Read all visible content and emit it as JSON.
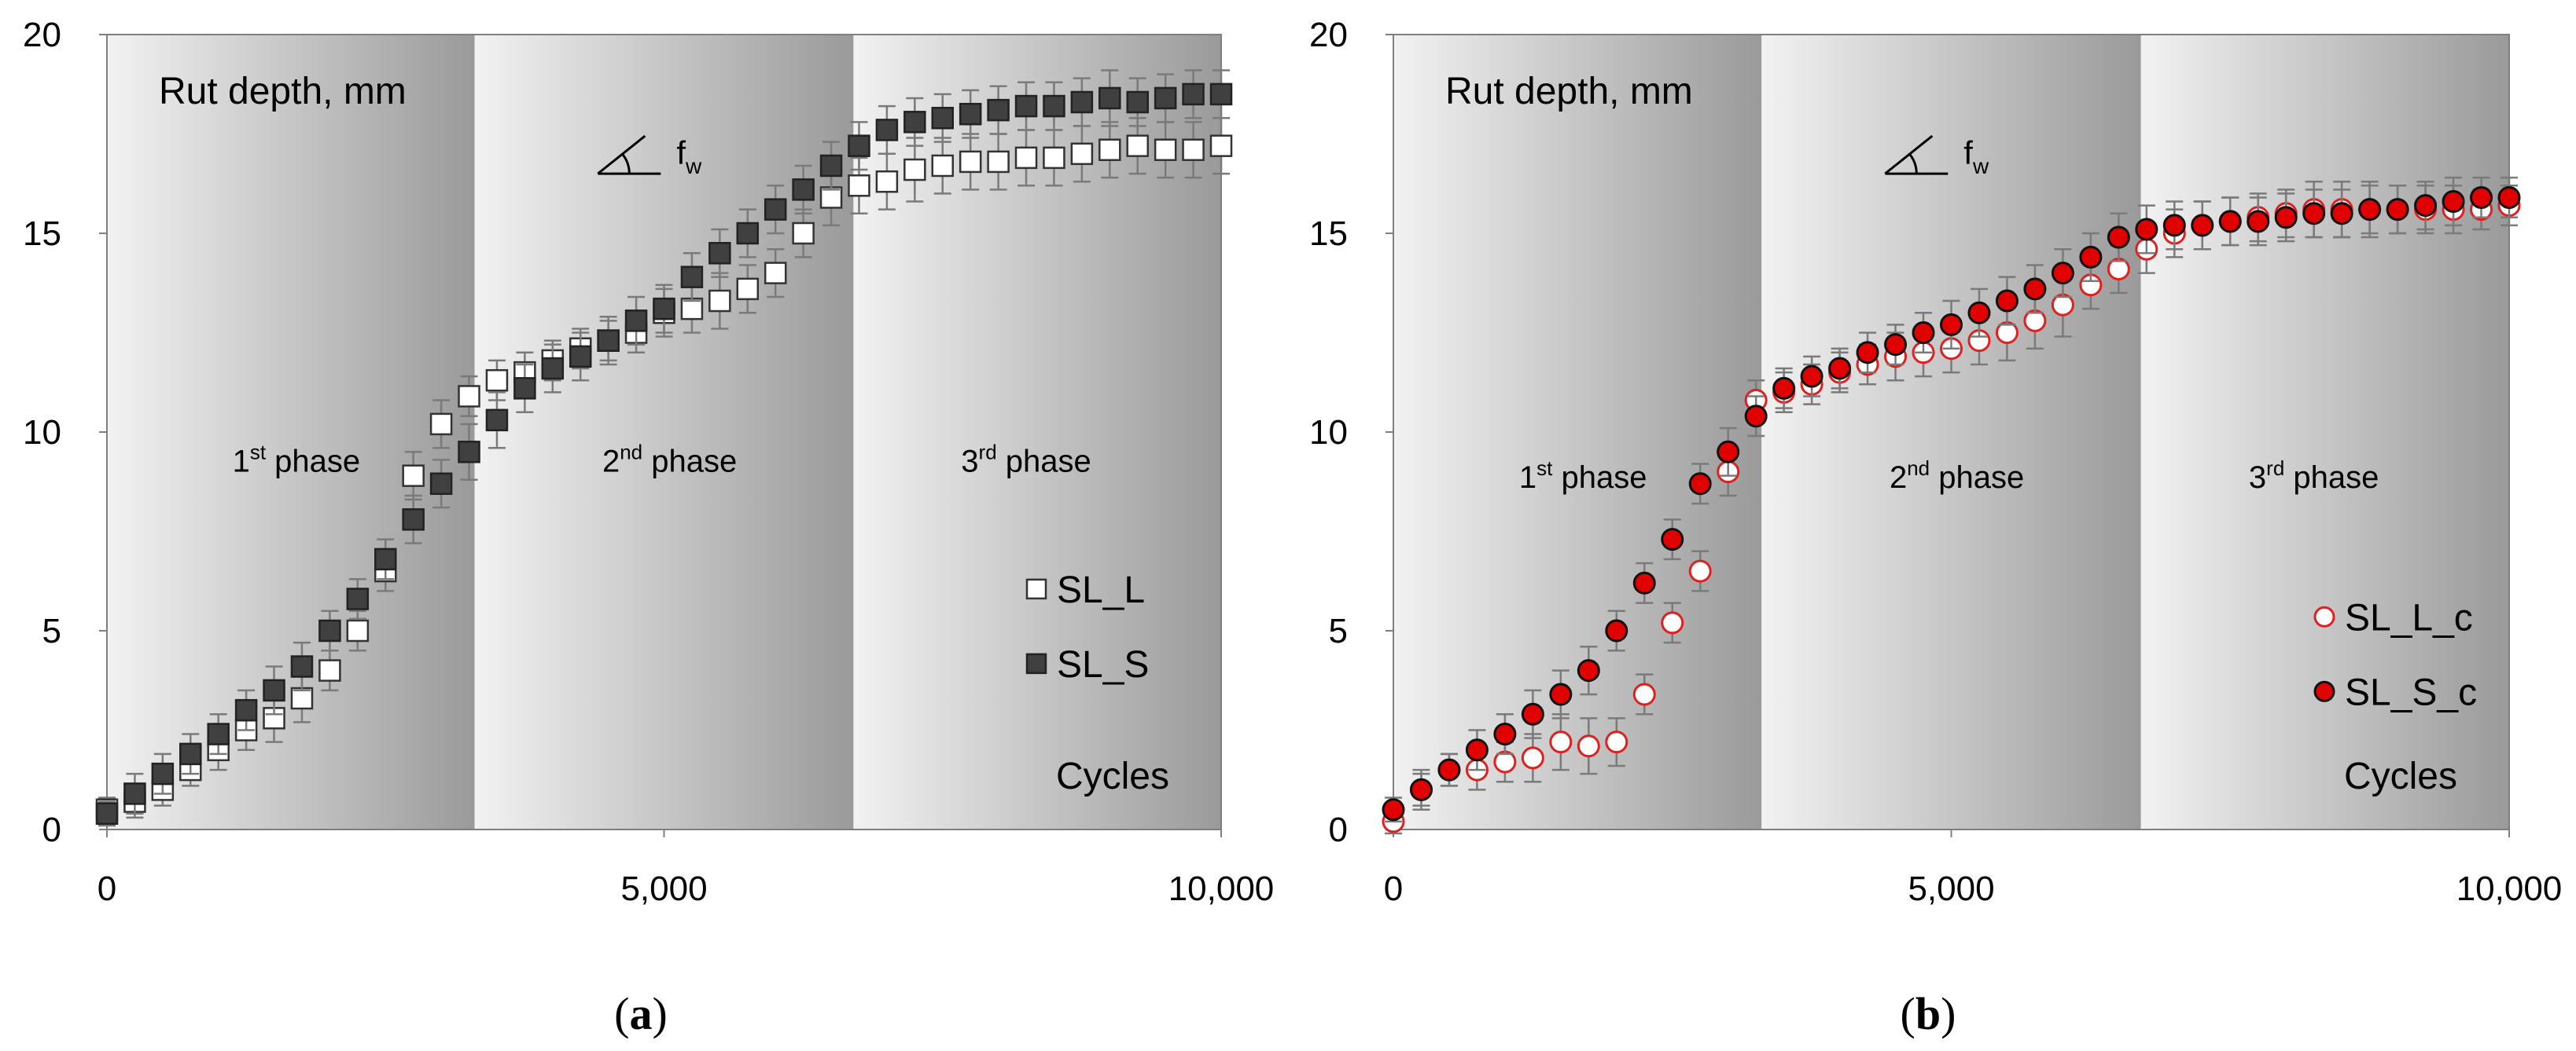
{
  "chart_data": [
    {
      "panel": "(a)",
      "panel_letter": "a",
      "type": "scatter",
      "ylabel": "Rut depth, mm",
      "xlabel": "Cycles",
      "xlim": [
        0,
        10000
      ],
      "ylim": [
        0,
        20
      ],
      "x_ticks": [
        "0",
        "5,000",
        "10,000"
      ],
      "y_ticks": [
        "0",
        "5",
        "10",
        "15",
        "20"
      ],
      "grid": false,
      "legend_position": "right",
      "background": "gradient",
      "phase_boundaries": [
        3300,
        6700
      ],
      "phases": [
        {
          "sup": "st",
          "num": "1",
          "text": " phase",
          "x": 1700,
          "y": 9.0
        },
        {
          "sup": "nd",
          "num": "2",
          "text": " phase",
          "x": 5050,
          "y": 9.0
        },
        {
          "sup": "rd",
          "num": "3",
          "text": " phase",
          "x": 8250,
          "y": 9.0
        }
      ],
      "fw_label": "w",
      "fw_prefix": "f",
      "fw_position": [
        4900,
        16.5
      ],
      "x": [
        0,
        250,
        500,
        750,
        1000,
        1250,
        1500,
        1750,
        2000,
        2250,
        2500,
        2750,
        3000,
        3250,
        3500,
        3750,
        4000,
        4250,
        4500,
        4750,
        5000,
        5250,
        5500,
        5750,
        6000,
        6250,
        6500,
        6750,
        7000,
        7250,
        7500,
        7750,
        8000,
        8250,
        8500,
        8750,
        9000,
        9250,
        9500,
        9750,
        10000
      ],
      "series": [
        {
          "name": "SL_L",
          "marker": "square",
          "fill": "#ffffff",
          "stroke": "#333333",
          "values": [
            0.5,
            0.7,
            1.0,
            1.5,
            2.0,
            2.5,
            2.8,
            3.3,
            4.0,
            5.0,
            6.5,
            8.9,
            10.2,
            10.9,
            11.3,
            11.5,
            11.8,
            12.1,
            12.3,
            12.5,
            13.0,
            13.1,
            13.3,
            13.6,
            14.0,
            15.0,
            15.9,
            16.2,
            16.3,
            16.6,
            16.7,
            16.8,
            16.8,
            16.9,
            16.9,
            17.0,
            17.1,
            17.2,
            17.1,
            17.1,
            17.2
          ],
          "errors": [
            0.3,
            0.4,
            0.4,
            0.4,
            0.5,
            0.5,
            0.6,
            0.6,
            0.5,
            0.5,
            0.5,
            0.6,
            0.6,
            0.5,
            0.5,
            0.5,
            0.5,
            0.5,
            0.5,
            0.5,
            0.6,
            0.6,
            0.7,
            0.6,
            0.6,
            0.6,
            0.7,
            0.7,
            0.7,
            0.8,
            0.7,
            0.7,
            0.7,
            0.7,
            0.7,
            0.7,
            0.7,
            0.7,
            0.7,
            0.7,
            0.7
          ]
        },
        {
          "name": "SL_S",
          "marker": "square",
          "fill": "#404040",
          "stroke": "#222222",
          "values": [
            0.4,
            0.9,
            1.4,
            1.9,
            2.4,
            3.0,
            3.5,
            4.1,
            5.0,
            5.8,
            6.8,
            7.8,
            8.7,
            9.5,
            10.3,
            11.1,
            11.6,
            11.9,
            12.3,
            12.8,
            13.1,
            13.9,
            14.5,
            15.0,
            15.6,
            16.1,
            16.7,
            17.2,
            17.6,
            17.8,
            17.9,
            18.0,
            18.1,
            18.2,
            18.2,
            18.3,
            18.4,
            18.3,
            18.4,
            18.5,
            18.5
          ],
          "errors": [
            0.3,
            0.5,
            0.5,
            0.5,
            0.5,
            0.5,
            0.6,
            0.6,
            0.5,
            0.5,
            0.5,
            0.6,
            0.6,
            0.7,
            0.7,
            0.6,
            0.6,
            0.6,
            0.6,
            0.6,
            0.6,
            0.6,
            0.6,
            0.6,
            0.6,
            0.6,
            0.6,
            0.6,
            0.6,
            0.6,
            0.6,
            0.6,
            0.6,
            0.6,
            0.6,
            0.6,
            0.7,
            0.6,
            0.6,
            0.6,
            0.6
          ]
        }
      ]
    },
    {
      "panel": "(b)",
      "panel_letter": "b",
      "type": "scatter",
      "ylabel": "Rut depth, mm",
      "xlabel": "Cycles",
      "xlim": [
        0,
        10000
      ],
      "ylim": [
        0,
        20
      ],
      "x_ticks": [
        "0",
        "5,000",
        "10,000"
      ],
      "y_ticks": [
        "0",
        "5",
        "10",
        "15",
        "20"
      ],
      "grid": false,
      "legend_position": "right",
      "background": "gradient",
      "phase_boundaries": [
        3300,
        6700
      ],
      "phases": [
        {
          "sup": "st",
          "num": "1",
          "text": " phase",
          "x": 1700,
          "y": 8.6
        },
        {
          "sup": "nd",
          "num": "2",
          "text": " phase",
          "x": 5050,
          "y": 8.6
        },
        {
          "sup": "rd",
          "num": "3",
          "text": " phase",
          "x": 8250,
          "y": 8.6
        }
      ],
      "fw_label": "w",
      "fw_prefix": "f",
      "fw_position": [
        4900,
        16.5
      ],
      "x": [
        0,
        250,
        500,
        750,
        1000,
        1250,
        1500,
        1750,
        2000,
        2250,
        2500,
        2750,
        3000,
        3250,
        3500,
        3750,
        4000,
        4250,
        4500,
        4750,
        5000,
        5250,
        5500,
        5750,
        6000,
        6250,
        6500,
        6750,
        7000,
        7250,
        7500,
        7750,
        8000,
        8250,
        8500,
        8750,
        9000,
        9250,
        9500,
        9750,
        10000
      ],
      "series": [
        {
          "name": "SL_L_c",
          "marker": "circle",
          "fill": "#ffffff",
          "stroke": "#e0201e",
          "values": [
            0.2,
            1.0,
            1.5,
            1.5,
            1.7,
            1.8,
            2.2,
            2.1,
            2.2,
            3.4,
            5.2,
            6.5,
            9.0,
            10.8,
            11.0,
            11.2,
            11.5,
            11.7,
            11.9,
            12.0,
            12.1,
            12.3,
            12.5,
            12.8,
            13.2,
            13.7,
            14.1,
            14.6,
            15.0,
            15.2,
            15.3,
            15.4,
            15.5,
            15.6,
            15.6,
            15.6,
            15.6,
            15.6,
            15.6,
            15.6,
            15.7
          ],
          "errors": [
            0.3,
            0.4,
            0.4,
            0.5,
            0.5,
            0.6,
            0.7,
            0.7,
            0.6,
            0.5,
            0.5,
            0.5,
            0.6,
            0.5,
            0.5,
            0.5,
            0.5,
            0.5,
            0.6,
            0.6,
            0.6,
            0.6,
            0.7,
            0.7,
            0.8,
            0.6,
            0.6,
            0.6,
            0.6,
            0.6,
            0.6,
            0.6,
            0.6,
            0.7,
            0.7,
            0.7,
            0.6,
            0.6,
            0.6,
            0.5,
            0.5
          ]
        },
        {
          "name": "SL_S_c",
          "marker": "circle",
          "fill": "#e00000",
          "stroke": "#111111",
          "values": [
            0.5,
            1.0,
            1.5,
            2.0,
            2.4,
            2.9,
            3.4,
            4.0,
            5.0,
            6.2,
            7.3,
            8.7,
            9.5,
            10.4,
            11.1,
            11.4,
            11.6,
            12.0,
            12.2,
            12.5,
            12.7,
            13.0,
            13.3,
            13.6,
            14.0,
            14.4,
            14.9,
            15.1,
            15.2,
            15.2,
            15.3,
            15.3,
            15.4,
            15.5,
            15.5,
            15.6,
            15.6,
            15.7,
            15.8,
            15.9,
            15.9
          ],
          "errors": [
            0.3,
            0.5,
            0.4,
            0.5,
            0.5,
            0.6,
            0.6,
            0.6,
            0.5,
            0.5,
            0.5,
            0.5,
            0.6,
            0.5,
            0.5,
            0.5,
            0.5,
            0.5,
            0.5,
            0.5,
            0.6,
            0.6,
            0.6,
            0.6,
            0.6,
            0.6,
            0.6,
            0.6,
            0.6,
            0.6,
            0.6,
            0.6,
            0.6,
            0.6,
            0.6,
            0.6,
            0.6,
            0.6,
            0.6,
            0.5,
            0.5
          ]
        }
      ]
    }
  ]
}
